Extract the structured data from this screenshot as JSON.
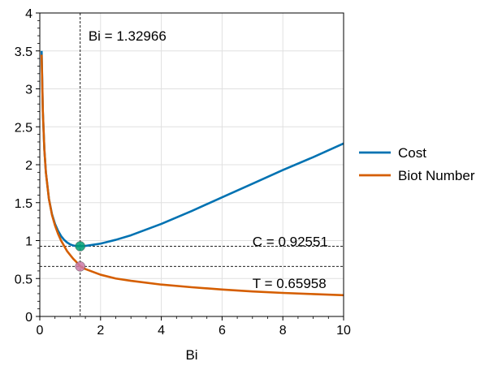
{
  "chart_data": {
    "type": "line",
    "xlabel": "Bi",
    "ylabel": "",
    "xlim": [
      0,
      10
    ],
    "ylim": [
      0,
      4
    ],
    "xticks": [
      0,
      2,
      4,
      6,
      8,
      10
    ],
    "xtick_labels": [
      "0",
      "2",
      "4",
      "6",
      "8",
      "10"
    ],
    "yticks": [
      0,
      0.5,
      1,
      1.5,
      2,
      2.5,
      3,
      3.5,
      4
    ],
    "ytick_labels": [
      "0",
      "0.5",
      "1",
      "1.5",
      "2",
      "2.5",
      "3",
      "3.5",
      "4"
    ],
    "grid": true,
    "legend_position": "right-outside",
    "series": [
      {
        "name": "Cost",
        "color": "#0072b2",
        "x": [
          0.06,
          0.1,
          0.15,
          0.2,
          0.3,
          0.4,
          0.5,
          0.6,
          0.7,
          0.8,
          0.9,
          1.0,
          1.1,
          1.2,
          1.33,
          1.5,
          2,
          2.5,
          3,
          4,
          5,
          6,
          7,
          8,
          9,
          10
        ],
        "y": [
          3.5,
          2.7,
          2.2,
          1.9,
          1.55,
          1.35,
          1.22,
          1.13,
          1.06,
          1.01,
          0.975,
          0.95,
          0.935,
          0.928,
          0.9255,
          0.93,
          0.96,
          1.01,
          1.07,
          1.22,
          1.39,
          1.57,
          1.75,
          1.93,
          2.1,
          2.28
        ]
      },
      {
        "name": "Biot Number",
        "color": "#d55e00",
        "x": [
          0.06,
          0.1,
          0.15,
          0.2,
          0.3,
          0.4,
          0.5,
          0.6,
          0.7,
          0.8,
          0.9,
          1.0,
          1.1,
          1.2,
          1.33,
          1.5,
          2,
          2.5,
          3,
          4,
          5,
          6,
          7,
          8,
          9,
          10
        ],
        "y": [
          3.45,
          2.7,
          2.2,
          1.9,
          1.55,
          1.34,
          1.2,
          1.09,
          1.0,
          0.93,
          0.86,
          0.81,
          0.76,
          0.72,
          0.6596,
          0.625,
          0.55,
          0.5,
          0.47,
          0.42,
          0.385,
          0.355,
          0.33,
          0.31,
          0.295,
          0.28
        ]
      }
    ],
    "reference_lines": {
      "bi": 1.32966,
      "cost": 0.92551,
      "t": 0.65958
    },
    "markers": [
      {
        "x": 1.32966,
        "y": 0.92551,
        "color": "#009e73"
      },
      {
        "x": 1.32966,
        "y": 0.65958,
        "color": "#cc79a7"
      }
    ],
    "annotations": [
      {
        "text": "Bi = 1.32966",
        "x": 1.6,
        "y": 3.7
      },
      {
        "text": "C = 0.92551",
        "x": 7.0,
        "y": 0.99
      },
      {
        "text": "T = 0.65958",
        "x": 7.0,
        "y": 0.44
      }
    ]
  }
}
